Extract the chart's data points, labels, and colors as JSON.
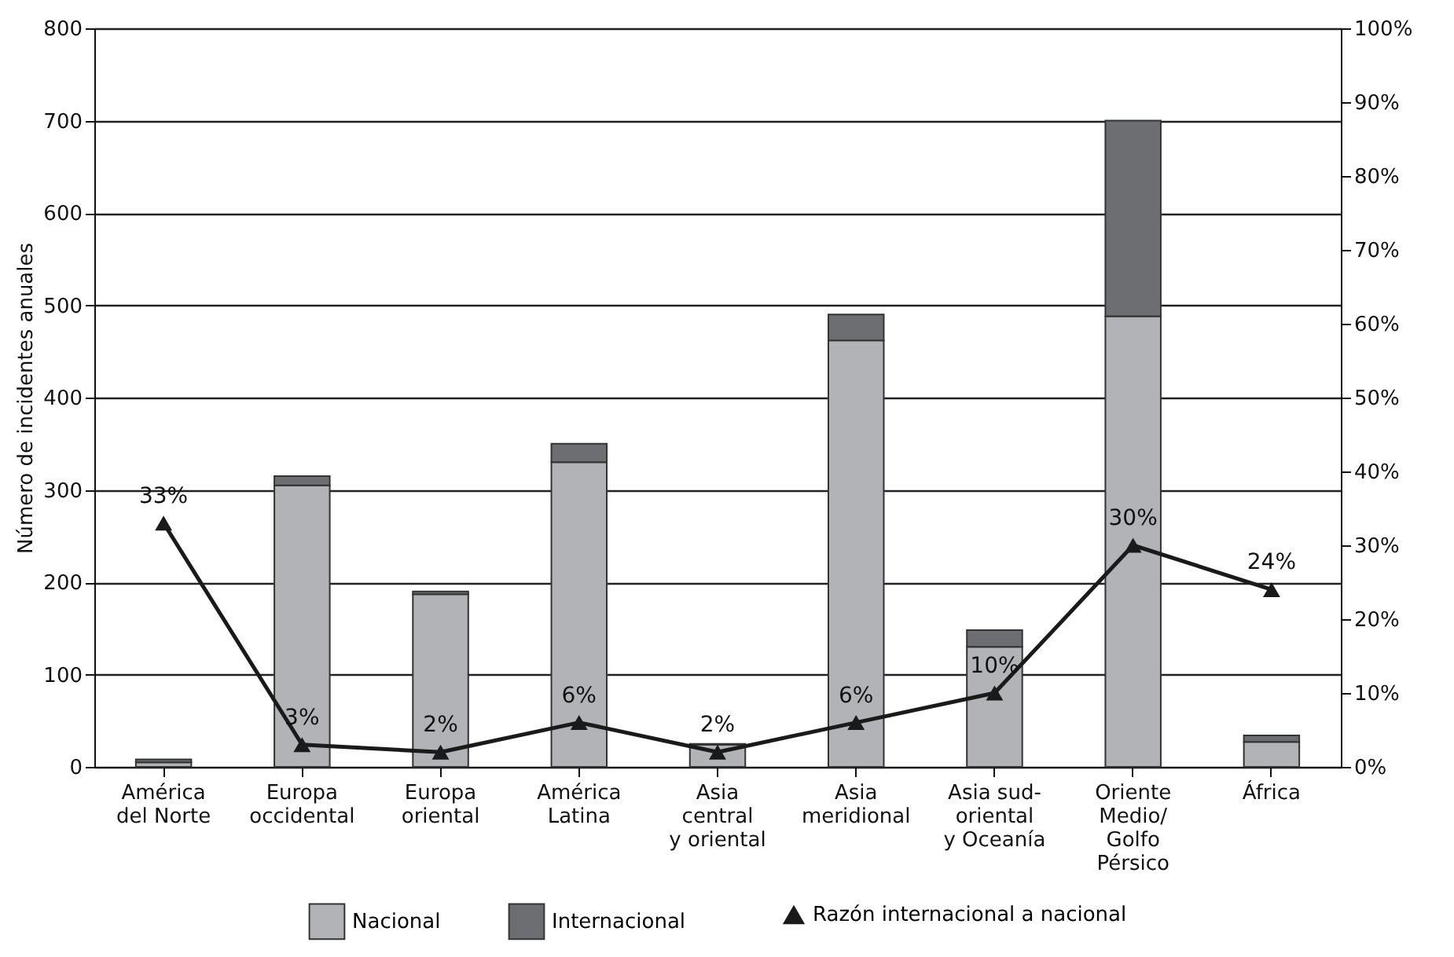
{
  "chart_data": {
    "type": "bar",
    "stacked": true,
    "ylabel": "Número de incidentes anuales",
    "categories": [
      "América\ndel Norte",
      "Europa\noccidental",
      "Europa\noriental",
      "América\nLatina",
      "Asia\ncentral\ny oriental",
      "Asia\nmeridional",
      "Asia sud-\noriental\ny Oceanía",
      "Oriente\nMedio/\nGolfo\nPérsico",
      "África"
    ],
    "series": [
      {
        "name": "Nacional",
        "color": "#b2b3b7",
        "values": [
          5,
          305,
          187,
          330,
          24,
          462,
          130,
          488,
          27
        ]
      },
      {
        "name": "Internacional",
        "color": "#6d6e72",
        "values": [
          3,
          10,
          3,
          20,
          1,
          28,
          18,
          212,
          7
        ]
      },
      {
        "name": "Razón internacional a nacional",
        "type": "line",
        "axis": "y2",
        "color": "#1a1a1a",
        "values": [
          33,
          3,
          2,
          6,
          2,
          6,
          10,
          30,
          24
        ],
        "value_labels": [
          "33%",
          "3%",
          "2%",
          "6%",
          "2%",
          "6%",
          "10%",
          "30%",
          "24%"
        ]
      }
    ],
    "ylim": [
      0,
      800
    ],
    "yticks": [
      0,
      100,
      200,
      300,
      400,
      500,
      600,
      700,
      800
    ],
    "y2lim": [
      0,
      100
    ],
    "y2ticks": [
      {
        "value": 0,
        "label": "0%"
      },
      {
        "value": 10,
        "label": "10%"
      },
      {
        "value": 20,
        "label": "20%"
      },
      {
        "value": 30,
        "label": "30%"
      },
      {
        "value": 40,
        "label": "40%"
      },
      {
        "value": 50,
        "label": "50%"
      },
      {
        "value": 60,
        "label": "60%"
      },
      {
        "value": 70,
        "label": "70%"
      },
      {
        "value": 80,
        "label": "80%"
      },
      {
        "value": 90,
        "label": "90%"
      },
      {
        "value": 100,
        "label": "100%"
      }
    ],
    "grid": "y",
    "legend": "bottom",
    "marker": "triangle"
  }
}
